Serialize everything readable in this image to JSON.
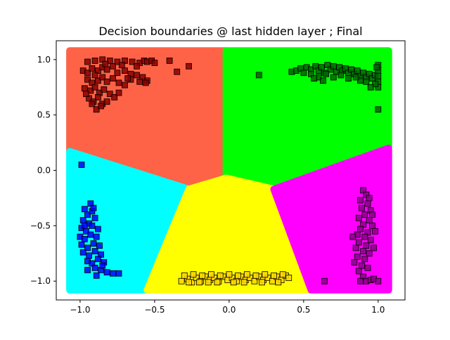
{
  "chart_data": {
    "type": "scatter",
    "title": "Decision boundaries @ last hidden layer ; Final",
    "xlabel": "",
    "ylabel": "",
    "xlim": [
      -1.16,
      1.18
    ],
    "ylim": [
      -1.17,
      1.17
    ],
    "x_ticks": [
      -1.0,
      -0.5,
      0.0,
      0.5,
      1.0
    ],
    "x_tick_labels": [
      "−1.0",
      "−0.5",
      "0.0",
      "0.5",
      "1.0"
    ],
    "y_ticks": [
      -1.0,
      -0.5,
      0.0,
      0.5,
      1.0
    ],
    "y_tick_labels": [
      "−1.0",
      "−0.5",
      "0.0",
      "0.5",
      "1.0"
    ],
    "grid": false,
    "regions": [
      {
        "color": "#ff6347",
        "polygon": [
          [
            -1.07,
            1.08
          ],
          [
            -0.02,
            1.08
          ],
          [
            -0.02,
            -0.07
          ],
          [
            -0.27,
            -0.17
          ],
          [
            -1.07,
            0.17
          ]
        ]
      },
      {
        "color": "#00ff00",
        "polygon": [
          [
            -0.02,
            1.08
          ],
          [
            1.07,
            1.08
          ],
          [
            1.07,
            0.2
          ],
          [
            0.3,
            -0.17
          ],
          [
            -0.02,
            -0.07
          ]
        ]
      },
      {
        "color": "#00ffff",
        "polygon": [
          [
            -1.07,
            0.17
          ],
          [
            -0.27,
            -0.17
          ],
          [
            -0.55,
            -1.08
          ],
          [
            -1.07,
            -1.08
          ]
        ]
      },
      {
        "color": "#ffff00",
        "polygon": [
          [
            -0.27,
            -0.17
          ],
          [
            -0.02,
            -0.07
          ],
          [
            0.3,
            -0.17
          ],
          [
            0.55,
            -1.08
          ],
          [
            -0.55,
            -1.08
          ]
        ]
      },
      {
        "color": "#ff00ff",
        "polygon": [
          [
            0.3,
            -0.17
          ],
          [
            1.07,
            0.2
          ],
          [
            1.07,
            -1.08
          ],
          [
            0.55,
            -1.08
          ]
        ]
      }
    ],
    "series": [
      {
        "color": "#8b0000",
        "marker": "square",
        "points": [
          [
            -0.95,
            0.98
          ],
          [
            -0.9,
            0.99
          ],
          [
            -0.85,
            1.0
          ],
          [
            -0.8,
            0.99
          ],
          [
            -0.75,
            0.98
          ],
          [
            -0.7,
            0.99
          ],
          [
            -0.65,
            0.98
          ],
          [
            -0.6,
            0.97
          ],
          [
            -0.57,
            0.99
          ],
          [
            -0.55,
            0.98
          ],
          [
            -0.52,
            0.99
          ],
          [
            -0.5,
            0.97
          ],
          [
            -0.4,
            0.99
          ],
          [
            -0.35,
            0.89
          ],
          [
            -0.27,
            0.94
          ],
          [
            -0.98,
            0.9
          ],
          [
            -0.95,
            0.88
          ],
          [
            -0.92,
            0.92
          ],
          [
            -0.88,
            0.9
          ],
          [
            -0.85,
            0.93
          ],
          [
            -0.82,
            0.91
          ],
          [
            -0.78,
            0.94
          ],
          [
            -0.75,
            0.88
          ],
          [
            -0.7,
            0.9
          ],
          [
            -0.66,
            0.87
          ],
          [
            -0.62,
            0.86
          ],
          [
            -0.58,
            0.84
          ],
          [
            -0.55,
            0.81
          ],
          [
            -0.95,
            0.82
          ],
          [
            -0.92,
            0.79
          ],
          [
            -0.88,
            0.81
          ],
          [
            -0.85,
            0.84
          ],
          [
            -0.82,
            0.8
          ],
          [
            -0.78,
            0.83
          ],
          [
            -0.74,
            0.79
          ],
          [
            -0.7,
            0.77
          ],
          [
            -0.66,
            0.82
          ],
          [
            -0.6,
            0.8
          ],
          [
            -0.56,
            0.79
          ],
          [
            -0.97,
            0.74
          ],
          [
            -0.93,
            0.72
          ],
          [
            -0.9,
            0.75
          ],
          [
            -0.87,
            0.7
          ],
          [
            -0.84,
            0.73
          ],
          [
            -0.8,
            0.69
          ],
          [
            -0.77,
            0.66
          ],
          [
            -0.74,
            0.7
          ],
          [
            -0.94,
            0.65
          ],
          [
            -0.91,
            0.62
          ],
          [
            -0.88,
            0.66
          ],
          [
            -0.85,
            0.6
          ],
          [
            -0.82,
            0.62
          ],
          [
            -0.89,
            0.55
          ],
          [
            -0.86,
            0.58
          ],
          [
            -0.92,
            0.6
          ],
          [
            -0.96,
            0.69
          ],
          [
            -0.9,
            0.86
          ],
          [
            -0.83,
            0.96
          ],
          [
            -0.72,
            0.95
          ],
          [
            -0.62,
            0.94
          ],
          [
            -0.68,
            0.83
          ]
        ]
      },
      {
        "color": "#006400",
        "marker": "square",
        "points": [
          [
            0.2,
            0.86
          ],
          [
            0.42,
            0.89
          ],
          [
            0.45,
            0.9
          ],
          [
            0.48,
            0.92
          ],
          [
            0.5,
            0.88
          ],
          [
            0.52,
            0.93
          ],
          [
            0.55,
            0.91
          ],
          [
            0.58,
            0.94
          ],
          [
            0.6,
            0.9
          ],
          [
            0.62,
            0.93
          ],
          [
            0.64,
            0.88
          ],
          [
            0.66,
            0.95
          ],
          [
            0.68,
            0.91
          ],
          [
            0.7,
            0.94
          ],
          [
            0.72,
            0.89
          ],
          [
            0.74,
            0.93
          ],
          [
            0.76,
            0.9
          ],
          [
            0.78,
            0.92
          ],
          [
            0.8,
            0.88
          ],
          [
            0.82,
            0.91
          ],
          [
            0.84,
            0.87
          ],
          [
            0.86,
            0.9
          ],
          [
            0.88,
            0.85
          ],
          [
            0.9,
            0.88
          ],
          [
            0.92,
            0.84
          ],
          [
            0.94,
            0.87
          ],
          [
            0.96,
            0.83
          ],
          [
            0.98,
            0.86
          ],
          [
            1.0,
            0.95
          ],
          [
            1.0,
            0.9
          ],
          [
            1.0,
            0.85
          ],
          [
            1.0,
            0.8
          ],
          [
            1.0,
            0.75
          ],
          [
            0.99,
            0.93
          ],
          [
            0.98,
            0.78
          ],
          [
            0.95,
            0.75
          ],
          [
            0.92,
            0.8
          ],
          [
            0.88,
            0.81
          ],
          [
            0.85,
            0.84
          ],
          [
            0.8,
            0.83
          ],
          [
            0.75,
            0.86
          ],
          [
            0.7,
            0.84
          ],
          [
            0.65,
            0.87
          ],
          [
            0.6,
            0.84
          ],
          [
            0.55,
            0.87
          ],
          [
            0.63,
            0.81
          ],
          [
            0.57,
            0.83
          ],
          [
            1.0,
            0.55
          ]
        ]
      },
      {
        "color": "#0000ff",
        "marker": "square",
        "points": [
          [
            -0.99,
            0.05
          ],
          [
            -0.97,
            -0.35
          ],
          [
            -0.95,
            -0.4
          ],
          [
            -0.92,
            -0.37
          ],
          [
            -0.98,
            -0.45
          ],
          [
            -0.94,
            -0.48
          ],
          [
            -0.9,
            -0.43
          ],
          [
            -0.99,
            -0.52
          ],
          [
            -0.96,
            -0.55
          ],
          [
            -0.92,
            -0.5
          ],
          [
            -0.88,
            -0.53
          ],
          [
            -1.0,
            -0.6
          ],
          [
            -0.97,
            -0.62
          ],
          [
            -0.93,
            -0.58
          ],
          [
            -0.89,
            -0.6
          ],
          [
            -0.99,
            -0.67
          ],
          [
            -0.95,
            -0.7
          ],
          [
            -0.91,
            -0.66
          ],
          [
            -0.87,
            -0.68
          ],
          [
            -0.98,
            -0.74
          ],
          [
            -0.94,
            -0.77
          ],
          [
            -0.9,
            -0.73
          ],
          [
            -0.86,
            -0.76
          ],
          [
            -0.95,
            -0.82
          ],
          [
            -0.92,
            -0.84
          ],
          [
            -0.88,
            -0.8
          ],
          [
            -0.84,
            -0.83
          ],
          [
            -0.9,
            -0.88
          ],
          [
            -0.86,
            -0.9
          ],
          [
            -0.82,
            -0.92
          ],
          [
            -0.78,
            -0.93
          ],
          [
            -0.74,
            -0.93
          ],
          [
            -0.93,
            -0.3
          ],
          [
            -0.91,
            -0.34
          ],
          [
            -0.97,
            -0.5
          ],
          [
            -0.85,
            -0.86
          ],
          [
            -0.89,
            -0.95
          ],
          [
            -0.95,
            -0.9
          ]
        ]
      },
      {
        "color": "#ffd700",
        "marker": "square",
        "points": [
          [
            -0.32,
            -1.0
          ],
          [
            -0.28,
            -0.98
          ],
          [
            -0.25,
            -1.01
          ],
          [
            -0.22,
            -0.97
          ],
          [
            -0.19,
            -1.0
          ],
          [
            -0.16,
            -0.96
          ],
          [
            -0.13,
            -0.99
          ],
          [
            -0.1,
            -0.97
          ],
          [
            -0.07,
            -1.0
          ],
          [
            -0.04,
            -0.96
          ],
          [
            -0.01,
            -0.99
          ],
          [
            0.02,
            -0.97
          ],
          [
            0.05,
            -1.0
          ],
          [
            0.08,
            -0.96
          ],
          [
            0.11,
            -0.99
          ],
          [
            0.14,
            -0.97
          ],
          [
            0.17,
            -1.0
          ],
          [
            0.2,
            -0.96
          ],
          [
            0.23,
            -0.99
          ],
          [
            0.26,
            -0.97
          ],
          [
            0.29,
            -1.0
          ],
          [
            0.32,
            -0.96
          ],
          [
            0.35,
            -0.99
          ],
          [
            0.38,
            -0.95
          ],
          [
            0.4,
            -0.97
          ],
          [
            0.36,
            -0.94
          ],
          [
            0.3,
            -0.95
          ],
          [
            0.24,
            -0.94
          ],
          [
            0.18,
            -0.95
          ],
          [
            0.12,
            -0.94
          ],
          [
            0.06,
            -0.95
          ],
          [
            0.0,
            -0.94
          ],
          [
            -0.06,
            -0.95
          ],
          [
            -0.12,
            -0.94
          ],
          [
            -0.18,
            -0.95
          ],
          [
            -0.24,
            -0.94
          ],
          [
            -0.3,
            -0.95
          ],
          [
            -0.27,
            -1.01
          ],
          [
            -0.2,
            -1.01
          ],
          [
            -0.14,
            -1.01
          ],
          [
            -0.08,
            -1.01
          ],
          [
            0.03,
            -1.01
          ],
          [
            0.1,
            -1.01
          ],
          [
            0.22,
            -1.01
          ],
          [
            0.33,
            -1.01
          ]
        ]
      },
      {
        "color": "#8b008b",
        "marker": "square",
        "points": [
          [
            0.9,
            -0.18
          ],
          [
            0.92,
            -0.22
          ],
          [
            0.88,
            -0.27
          ],
          [
            0.93,
            -0.3
          ],
          [
            0.89,
            -0.34
          ],
          [
            0.95,
            -0.36
          ],
          [
            0.91,
            -0.4
          ],
          [
            0.87,
            -0.43
          ],
          [
            0.94,
            -0.45
          ],
          [
            0.9,
            -0.49
          ],
          [
            0.96,
            -0.5
          ],
          [
            0.88,
            -0.53
          ],
          [
            0.93,
            -0.56
          ],
          [
            0.86,
            -0.58
          ],
          [
            0.91,
            -0.6
          ],
          [
            0.95,
            -0.63
          ],
          [
            0.87,
            -0.65
          ],
          [
            0.92,
            -0.68
          ],
          [
            0.85,
            -0.7
          ],
          [
            0.9,
            -0.73
          ],
          [
            0.94,
            -0.75
          ],
          [
            0.86,
            -0.78
          ],
          [
            0.91,
            -0.8
          ],
          [
            0.84,
            -0.83
          ],
          [
            0.89,
            -0.86
          ],
          [
            0.93,
            -0.88
          ],
          [
            0.87,
            -0.91
          ],
          [
            0.9,
            -0.96
          ],
          [
            0.92,
            -1.0
          ],
          [
            0.95,
            -0.99
          ],
          [
            0.88,
            -1.0
          ],
          [
            0.97,
            -0.98
          ],
          [
            1.0,
            -1.0
          ],
          [
            0.64,
            -1.0
          ],
          [
            0.96,
            -0.4
          ],
          [
            0.98,
            -0.55
          ],
          [
            0.97,
            -0.7
          ],
          [
            0.83,
            -0.6
          ],
          [
            0.94,
            -0.25
          ]
        ]
      }
    ]
  }
}
